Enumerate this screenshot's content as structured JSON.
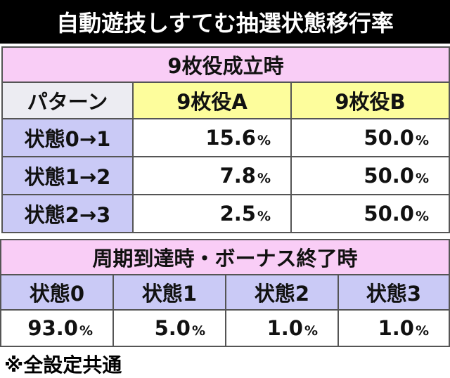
{
  "header": {
    "title": "自動遊技しすてむ抽選状態移行率"
  },
  "table1": {
    "title": "9枚役成立時",
    "columns": [
      "パターン",
      "9枚役A",
      "9枚役B"
    ],
    "rows": [
      [
        "状態0→1",
        {
          "num": "15.6",
          "unit": "%"
        },
        {
          "num": "50.0",
          "unit": "%"
        }
      ],
      [
        "状態1→2",
        {
          "num": "7.8",
          "unit": "%"
        },
        {
          "num": "50.0",
          "unit": "%"
        }
      ],
      [
        "状態2→3",
        {
          "num": "2.5",
          "unit": "%"
        },
        {
          "num": "50.0",
          "unit": "%"
        }
      ]
    ]
  },
  "table2": {
    "title": "周期到達時・ボーナス終了時",
    "columns": [
      "状態0",
      "状態1",
      "状態2",
      "状態3"
    ],
    "values": [
      {
        "num": "93.0",
        "unit": "%"
      },
      {
        "num": "5.0",
        "unit": "%"
      },
      {
        "num": "1.0",
        "unit": "%"
      },
      {
        "num": "1.0",
        "unit": "%"
      }
    ]
  },
  "footer": {
    "note": "※全設定共通"
  }
}
